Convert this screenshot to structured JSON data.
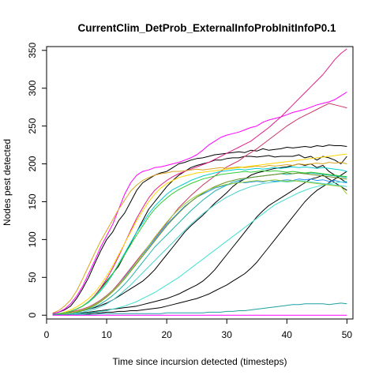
{
  "chart_data": {
    "type": "line",
    "title": "CurrentClim_DetProb_ExternalInfoProbInitInfoP0.1",
    "xlabel": "Time since incursion detected (timesteps)",
    "ylabel": "Nodes pest detected",
    "xlim": [
      0,
      51
    ],
    "ylim": [
      -5,
      355
    ],
    "xticks": [
      0,
      10,
      20,
      30,
      40,
      50
    ],
    "yticks": [
      0,
      50,
      100,
      150,
      200,
      250,
      300,
      350
    ],
    "grid": false,
    "legend": "none",
    "x": [
      1,
      2,
      3,
      4,
      5,
      6,
      7,
      8,
      9,
      10,
      11,
      12,
      13,
      14,
      15,
      16,
      17,
      18,
      19,
      20,
      21,
      22,
      23,
      24,
      25,
      26,
      27,
      28,
      29,
      30,
      31,
      32,
      33,
      34,
      35,
      36,
      37,
      38,
      39,
      40,
      41,
      42,
      43,
      44,
      45,
      46,
      47,
      48,
      49,
      50
    ],
    "series": [
      {
        "color": "#000000",
        "values": [
          2,
          4,
          7,
          12,
          22,
          35,
          50,
          68,
          85,
          100,
          110,
          125,
          135,
          150,
          165,
          175,
          180,
          185,
          188,
          190,
          195,
          200,
          202,
          205,
          207,
          208,
          210,
          212,
          213,
          214,
          215,
          216,
          215,
          218,
          217,
          220,
          218,
          219,
          220,
          222,
          221,
          222,
          223,
          222,
          224,
          223,
          225,
          224,
          224,
          223
        ]
      },
      {
        "color": "#000000",
        "values": [
          1,
          2,
          3,
          5,
          8,
          12,
          18,
          25,
          35,
          45,
          55,
          65,
          80,
          95,
          110,
          125,
          140,
          150,
          160,
          170,
          178,
          185,
          190,
          195,
          198,
          200,
          202,
          205,
          205,
          207,
          208,
          208,
          210,
          210,
          209,
          210,
          211,
          209,
          210,
          210,
          210,
          212,
          208,
          210,
          205,
          210,
          208,
          205,
          200,
          210
        ]
      },
      {
        "color": "#000000",
        "values": [
          1,
          1,
          2,
          3,
          4,
          6,
          8,
          10,
          13,
          16,
          20,
          25,
          30,
          35,
          40,
          45,
          52,
          60,
          70,
          80,
          90,
          100,
          110,
          118,
          125,
          132,
          140,
          148,
          155,
          162,
          170,
          176,
          180,
          185,
          188,
          190,
          192,
          194,
          195,
          196,
          198,
          200,
          198,
          200,
          195,
          198,
          190,
          185,
          180,
          175
        ]
      },
      {
        "color": "#000000",
        "values": [
          1,
          1,
          1,
          2,
          2,
          3,
          4,
          5,
          6,
          7,
          8,
          9,
          10,
          11,
          12,
          14,
          16,
          18,
          20,
          22,
          25,
          28,
          32,
          36,
          40,
          45,
          52,
          60,
          70,
          80,
          90,
          100,
          110,
          120,
          130,
          138,
          145,
          150,
          155,
          160,
          165,
          170,
          175,
          180,
          182,
          185,
          180,
          175,
          170,
          165
        ]
      },
      {
        "color": "#000000",
        "values": [
          1,
          1,
          1,
          1,
          2,
          2,
          2,
          3,
          3,
          4,
          4,
          5,
          5,
          6,
          6,
          7,
          8,
          9,
          10,
          12,
          14,
          16,
          18,
          20,
          22,
          25,
          28,
          32,
          36,
          40,
          45,
          50,
          55,
          62,
          70,
          80,
          90,
          100,
          110,
          120,
          130,
          140,
          150,
          158,
          165,
          170,
          175,
          180,
          185,
          190
        ]
      },
      {
        "color": "#FF00FF",
        "values": [
          2,
          4,
          8,
          15,
          25,
          38,
          55,
          72,
          90,
          105,
          120,
          140,
          160,
          175,
          185,
          190,
          192,
          195,
          196,
          198,
          200,
          202,
          205,
          208,
          212,
          218,
          225,
          230,
          235,
          238,
          240,
          242,
          245,
          248,
          250,
          255,
          258,
          260,
          262,
          265,
          268,
          270,
          272,
          275,
          278,
          280,
          282,
          285,
          290,
          295
        ]
      },
      {
        "color": "#E0208A",
        "values": [
          1,
          2,
          3,
          5,
          8,
          12,
          18,
          26,
          36,
          48,
          62,
          78,
          95,
          112,
          128,
          142,
          155,
          165,
          172,
          178,
          183,
          187,
          190,
          193,
          196,
          199,
          202,
          206,
          210,
          214,
          218,
          222,
          226,
          230,
          236,
          242,
          248,
          255,
          262,
          270,
          278,
          286,
          294,
          302,
          310,
          318,
          328,
          338,
          346,
          352
        ]
      },
      {
        "color": "#CC3366",
        "values": [
          1,
          2,
          3,
          4,
          6,
          8,
          11,
          15,
          20,
          26,
          33,
          42,
          52,
          62,
          72,
          82,
          92,
          102,
          112,
          122,
          132,
          142,
          150,
          158,
          165,
          172,
          178,
          184,
          190,
          196,
          200,
          204,
          210,
          215,
          220,
          226,
          232,
          238,
          244,
          250,
          255,
          260,
          264,
          268,
          272,
          276,
          280,
          278,
          276,
          274
        ]
      },
      {
        "color": "#DAA520",
        "values": [
          3,
          6,
          12,
          20,
          32,
          48,
          65,
          82,
          98,
          112,
          126,
          140,
          152,
          164,
          172,
          178,
          182,
          185,
          187,
          188,
          190,
          190,
          191,
          192,
          193,
          192,
          193,
          194,
          195,
          194,
          195,
          196,
          195,
          196,
          197,
          196,
          198,
          197,
          198,
          199,
          198,
          200,
          199,
          200,
          201,
          200,
          202,
          201,
          202,
          200
        ]
      },
      {
        "color": "#FFD700",
        "values": [
          1,
          2,
          4,
          7,
          11,
          16,
          22,
          30,
          40,
          52,
          65,
          80,
          95,
          110,
          125,
          138,
          150,
          160,
          168,
          174,
          178,
          182,
          184,
          186,
          188,
          189,
          190,
          191,
          192,
          193,
          194,
          195,
          196,
          197,
          198,
          199,
          200,
          201,
          202,
          203,
          204,
          205,
          206,
          207,
          208,
          209,
          210,
          211,
          212,
          213
        ]
      },
      {
        "color": "#00CED1",
        "values": [
          1,
          2,
          3,
          5,
          8,
          12,
          17,
          24,
          32,
          42,
          54,
          68,
          82,
          96,
          110,
          122,
          134,
          144,
          152,
          160,
          166,
          170,
          174,
          178,
          181,
          184,
          186,
          188,
          190,
          191,
          192,
          193,
          192,
          193,
          194,
          193,
          194,
          195,
          194,
          195,
          196,
          195,
          196,
          195,
          194,
          195,
          194,
          193,
          192,
          190
        ]
      },
      {
        "color": "#1E90FF",
        "values": [
          1,
          1,
          2,
          3,
          5,
          7,
          10,
          14,
          19,
          25,
          32,
          40,
          50,
          60,
          70,
          80,
          90,
          100,
          110,
          120,
          128,
          136,
          144,
          150,
          156,
          160,
          164,
          168,
          170,
          172,
          174,
          176,
          175,
          176,
          177,
          176,
          178,
          177,
          178,
          179,
          178,
          180,
          179,
          180,
          178,
          179,
          177,
          178,
          176,
          175
        ]
      },
      {
        "color": "#20B2AA",
        "values": [
          1,
          1,
          2,
          3,
          4,
          6,
          8,
          11,
          15,
          20,
          26,
          33,
          41,
          50,
          60,
          70,
          80,
          90,
          98,
          106,
          114,
          122,
          130,
          138,
          145,
          152,
          158,
          164,
          168,
          172,
          176,
          178,
          180,
          182,
          183,
          184,
          185,
          186,
          187,
          186,
          187,
          188,
          187,
          188,
          187,
          186,
          185,
          184,
          183,
          182
        ]
      },
      {
        "color": "#48D1CC",
        "values": [
          1,
          1,
          1,
          2,
          3,
          4,
          6,
          8,
          11,
          15,
          20,
          26,
          33,
          40,
          48,
          56,
          64,
          72,
          80,
          88,
          96,
          104,
          112,
          120,
          127,
          134,
          140,
          146,
          151,
          156,
          160,
          164,
          167,
          170,
          172,
          174,
          175,
          176,
          177,
          176,
          177,
          178,
          177,
          176,
          175,
          174,
          173,
          172,
          171,
          170
        ]
      },
      {
        "color": "#40E0D0",
        "values": [
          1,
          1,
          1,
          1,
          2,
          2,
          3,
          4,
          5,
          6,
          8,
          10,
          12,
          15,
          18,
          22,
          26,
          30,
          35,
          40,
          45,
          50,
          56,
          62,
          68,
          74,
          80,
          86,
          92,
          98,
          104,
          110,
          116,
          122,
          128,
          134,
          140,
          146,
          150,
          154,
          158,
          162,
          165,
          168,
          170,
          172,
          174,
          175,
          176,
          177
        ]
      },
      {
        "color": "#32CD32",
        "values": [
          1,
          2,
          3,
          5,
          8,
          12,
          18,
          25,
          34,
          44,
          55,
          67,
          80,
          93,
          106,
          118,
          130,
          140,
          148,
          155,
          161,
          166,
          170,
          174,
          177,
          180,
          182,
          184,
          186,
          187,
          188,
          189,
          190,
          189,
          190,
          191,
          190,
          191,
          190,
          189,
          190,
          189,
          188,
          189,
          188,
          187,
          186,
          185,
          184,
          183
        ]
      },
      {
        "color": "#6B8E23",
        "values": [
          1,
          1,
          2,
          3,
          4,
          6,
          9,
          13,
          18,
          24,
          31,
          39,
          48,
          58,
          68,
          78,
          88,
          98,
          108,
          118,
          127,
          135,
          143,
          150,
          156,
          161,
          166,
          170,
          173,
          176,
          178,
          180,
          181,
          182,
          183,
          184,
          185,
          186,
          187,
          188,
          187,
          188,
          187,
          186,
          185,
          184,
          183,
          182,
          181,
          180
        ]
      },
      {
        "color": "#9ACD32",
        "values": [
          1,
          1,
          2,
          3,
          5,
          7,
          10,
          14,
          19,
          25,
          32,
          40,
          49,
          59,
          70,
          81,
          92,
          103,
          113,
          123,
          132,
          140,
          147,
          153,
          158,
          162,
          166,
          169,
          171,
          173,
          174,
          175,
          176,
          177,
          178,
          177,
          178,
          179,
          178,
          177,
          178,
          177,
          176,
          175,
          174,
          173,
          172,
          171,
          170,
          160
        ]
      },
      {
        "color": "#1FA0A0",
        "values": [
          1,
          1,
          1,
          1,
          1,
          1,
          1,
          1,
          2,
          2,
          2,
          2,
          2,
          2,
          2,
          2,
          2,
          2,
          2,
          3,
          3,
          3,
          3,
          3,
          3,
          3,
          4,
          4,
          4,
          5,
          5,
          6,
          6,
          7,
          8,
          9,
          10,
          11,
          12,
          13,
          14,
          14,
          15,
          15,
          15,
          15,
          14,
          15,
          16,
          15
        ]
      },
      {
        "color": "#FF00FF",
        "values": [
          0,
          0,
          0,
          0,
          0,
          0,
          0,
          0,
          0,
          0,
          0,
          0,
          0,
          0,
          0,
          0,
          0,
          0,
          0,
          0,
          0,
          0,
          0,
          0,
          0,
          0,
          0,
          0,
          0,
          0,
          0,
          0,
          0,
          0,
          0,
          0,
          0,
          0,
          0,
          0,
          0,
          0,
          0,
          0,
          0,
          0,
          0,
          0,
          0,
          0
        ]
      }
    ]
  }
}
